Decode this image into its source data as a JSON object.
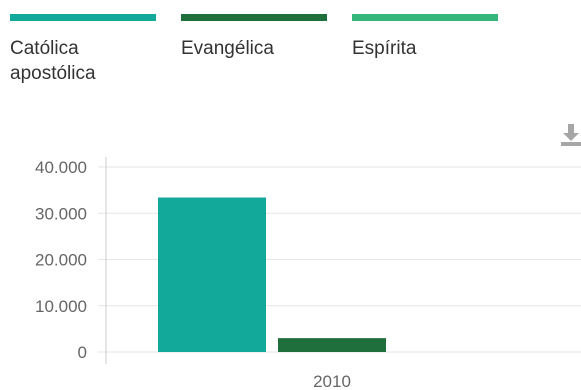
{
  "legend": [
    {
      "label_line1": "Católica",
      "label_line2": "apostólica",
      "color": "#12a89a"
    },
    {
      "label_line1": "Evangélica",
      "label_line2": "",
      "color": "#1f6f3d"
    },
    {
      "label_line1": "Espírita",
      "label_line2": "",
      "color": "#35b67a"
    }
  ],
  "download_icon": "download-icon",
  "chart_data": {
    "type": "bar",
    "categories": [
      "2010"
    ],
    "series": [
      {
        "name": "Católica apostólica",
        "values": [
          33400
        ],
        "color": "#12a89a"
      },
      {
        "name": "Evangélica",
        "values": [
          3000
        ],
        "color": "#1f6f3d"
      },
      {
        "name": "Espírita",
        "values": [
          0
        ],
        "color": "#35b67a"
      }
    ],
    "ylim": [
      0,
      40000
    ],
    "yticks": [
      0,
      10000,
      20000,
      30000,
      40000
    ],
    "ytick_labels": [
      "0",
      "10.000",
      "20.000",
      "30.000",
      "40.000"
    ],
    "grid": true,
    "legend_position": "top"
  }
}
